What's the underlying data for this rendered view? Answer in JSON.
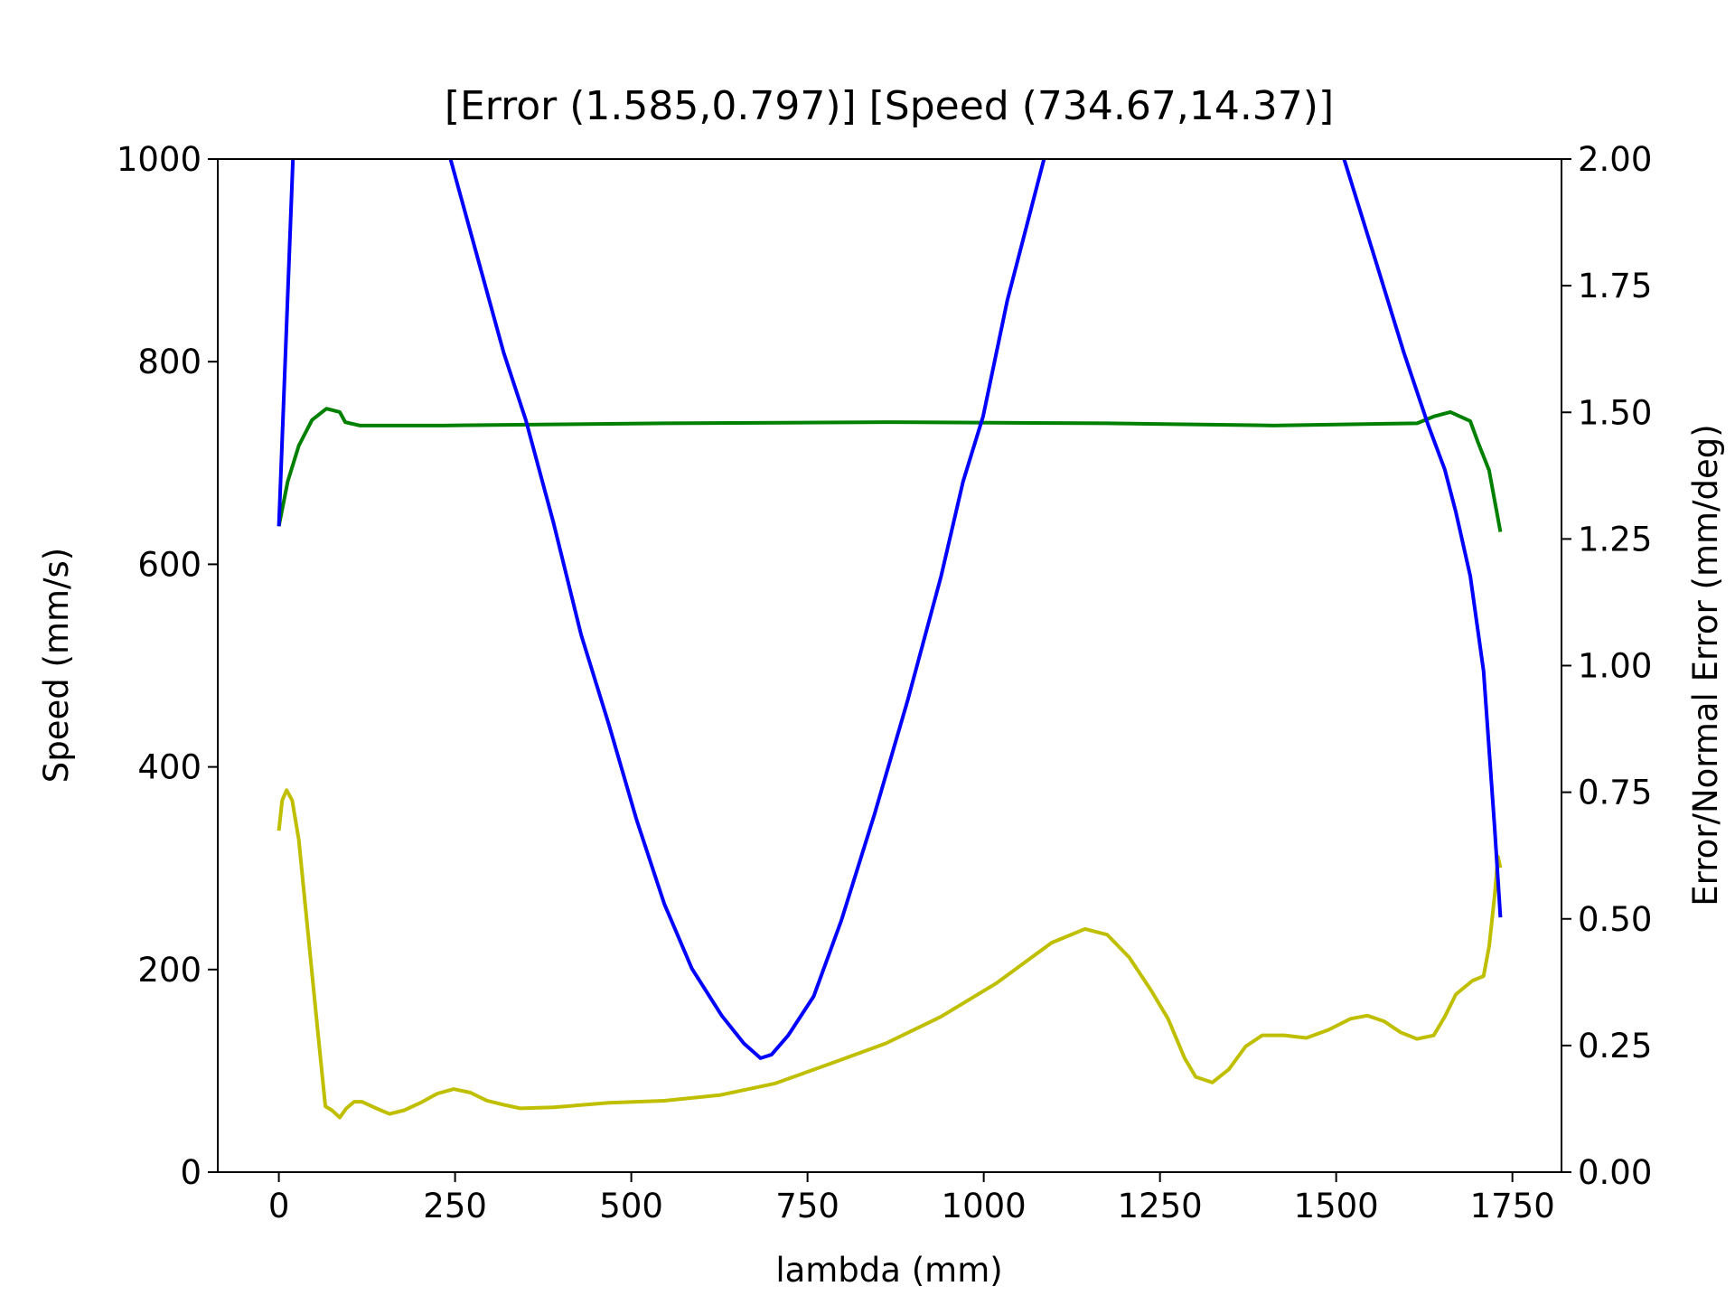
{
  "chart_data": {
    "type": "line",
    "title": "[Error (1.585,0.797)] [Speed (734.67,14.37)]",
    "xlabel": "lambda (mm)",
    "ylabel": "Speed (mm/s)",
    "y2label": "Error/Normal Error (mm/deg)",
    "ylabel_color": "#008000",
    "y2label_color": "#0000ff",
    "xlim": [
      -86.65,
      1819.65
    ],
    "xticks": [
      0,
      250,
      500,
      750,
      1000,
      1250,
      1500,
      1750
    ],
    "ylim": [
      0,
      1000
    ],
    "yticks": [
      0,
      200,
      400,
      600,
      800,
      1000
    ],
    "y2lim": [
      0,
      2
    ],
    "y2ticks": [
      {
        "value": 0,
        "label": "0.00"
      },
      {
        "value": 0.25,
        "label": "0.25"
      },
      {
        "value": 0.5,
        "label": "0.50"
      },
      {
        "value": 0.75,
        "label": "0.75"
      },
      {
        "value": 1,
        "label": "1.00"
      },
      {
        "value": 1.25,
        "label": "1.25"
      },
      {
        "value": 1.5,
        "label": "1.50"
      },
      {
        "value": 1.75,
        "label": "1.75"
      },
      {
        "value": 2,
        "label": "2.00"
      }
    ],
    "series": [
      {
        "color": "#008000",
        "x": [
          0,
          12.6,
          28.3,
          47.1,
          67.5,
          86.4,
          94.2,
          114.6,
          232.5,
          546.7,
          860.8,
          1175,
          1410.6,
          1614.8,
          1638.4,
          1662,
          1690.2,
          1701.2,
          1716.9,
          1733
        ],
        "values": [
          637.6,
          681.8,
          717.1,
          742.5,
          753.6,
          750.3,
          740.3,
          737,
          737,
          739.2,
          740.3,
          739.2,
          737,
          739.2,
          745.9,
          750.3,
          741.4,
          720.4,
          692.8,
          632
        ]
      },
      {
        "color": "#bfbf00",
        "axis": "y2",
        "x": [
          0,
          4.7,
          11,
          18.9,
          28.3,
          40.8,
          55,
          66,
          75.4,
          86.4,
          95.8,
          106.8,
          117.8,
          138.2,
          157,
          177.5,
          201,
          224.6,
          248.2,
          271.8,
          295.3,
          318.9,
          342.4,
          389.6,
          468,
          546.7,
          625.2,
          703.7,
          782.3,
          860.8,
          939.4,
          1017.9,
          1096.4,
          1143.6,
          1175,
          1206.4,
          1237.8,
          1261.4,
          1285,
          1300.7,
          1324.2,
          1347.8,
          1371.4,
          1394.9,
          1426.3,
          1457.7,
          1489.2,
          1520.6,
          1544.2,
          1567.7,
          1591.3,
          1614.8,
          1638.4,
          1654.1,
          1669.8,
          1693.4,
          1709.1,
          1717,
          1724.8,
          1729.5,
          1733
        ],
        "values": [
          0.674,
          0.734,
          0.754,
          0.734,
          0.656,
          0.48,
          0.281,
          0.13,
          0.122,
          0.108,
          0.126,
          0.139,
          0.139,
          0.126,
          0.115,
          0.122,
          0.137,
          0.155,
          0.164,
          0.157,
          0.141,
          0.133,
          0.126,
          0.128,
          0.137,
          0.141,
          0.152,
          0.175,
          0.214,
          0.254,
          0.307,
          0.373,
          0.453,
          0.48,
          0.469,
          0.424,
          0.358,
          0.303,
          0.225,
          0.188,
          0.177,
          0.203,
          0.248,
          0.27,
          0.27,
          0.265,
          0.281,
          0.303,
          0.309,
          0.298,
          0.276,
          0.263,
          0.27,
          0.307,
          0.351,
          0.378,
          0.387,
          0.446,
          0.546,
          0.623,
          0.601
        ]
      },
      {
        "color": "#0000ff",
        "axis": "y2",
        "x": [
          0,
          20,
          130,
          243.5,
          279.6,
          318.9,
          350.3,
          389.6,
          428.8,
          468.1,
          507.4,
          546.7,
          585.9,
          628.3,
          659.8,
          683.3,
          699,
          722.6,
          758.7,
          798,
          845.1,
          892.2,
          939.4,
          970.8,
          999.1,
          1033.6,
          1085.5,
          1300,
          1511.2,
          1552,
          1596,
          1630.5,
          1654.1,
          1669.8,
          1690.2,
          1709.1,
          1724.8,
          1733
        ],
        "values": [
          1.275,
          2,
          null,
          2,
          1.817,
          1.618,
          1.485,
          1.282,
          1.061,
          0.884,
          0.696,
          0.53,
          0.402,
          0.309,
          0.254,
          0.225,
          0.232,
          0.27,
          0.347,
          0.497,
          0.707,
          0.932,
          1.176,
          1.364,
          1.492,
          1.722,
          2,
          null,
          2,
          1.817,
          1.618,
          1.475,
          1.387,
          1.303,
          1.177,
          0.989,
          0.68,
          0.503
        ]
      }
    ]
  }
}
